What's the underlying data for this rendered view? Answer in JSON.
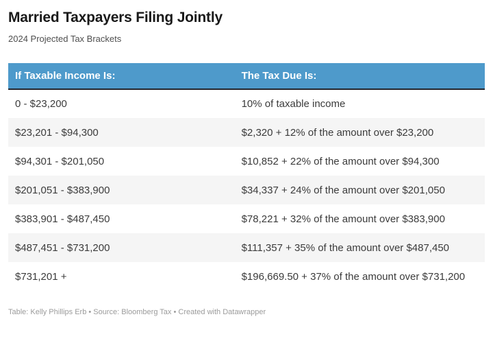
{
  "colors": {
    "header_bg": "#4E9ACB",
    "header_text": "#FFFFFF",
    "header_border": "#22242C",
    "stripe": "#F5F5F5",
    "row_text": "#3B3B3B",
    "title_text": "#191919",
    "subtitle_text": "#4F4F4F",
    "footer_text": "#9B9B9B"
  },
  "chart_data": {
    "type": "table",
    "title": "Married Taxpayers Filing Jointly",
    "subtitle": "2024 Projected Tax Brackets",
    "columns": [
      "If Taxable Income Is:",
      "The Tax Due Is:"
    ],
    "rows": [
      [
        "0 - $23,200",
        "10% of taxable income"
      ],
      [
        "$23,201 - $94,300",
        "$2,320 + 12% of the amount over $23,200"
      ],
      [
        "$94,301 - $201,050",
        "$10,852 + 22% of the amount over $94,300"
      ],
      [
        "$201,051 - $383,900",
        "$34,337 + 24% of the amount over $201,050"
      ],
      [
        "$383,901 - $487,450",
        "$78,221 + 32% of the amount over $383,900"
      ],
      [
        "$487,451 - $731,200",
        "$111,357 + 35% of the amount over $487,450"
      ],
      [
        "$731,201 +",
        "$196,669.50 + 37% of the amount over $731,200"
      ]
    ],
    "footer": "Table: Kelly Phillips Erb • Source: Bloomberg Tax • Created with Datawrapper"
  }
}
